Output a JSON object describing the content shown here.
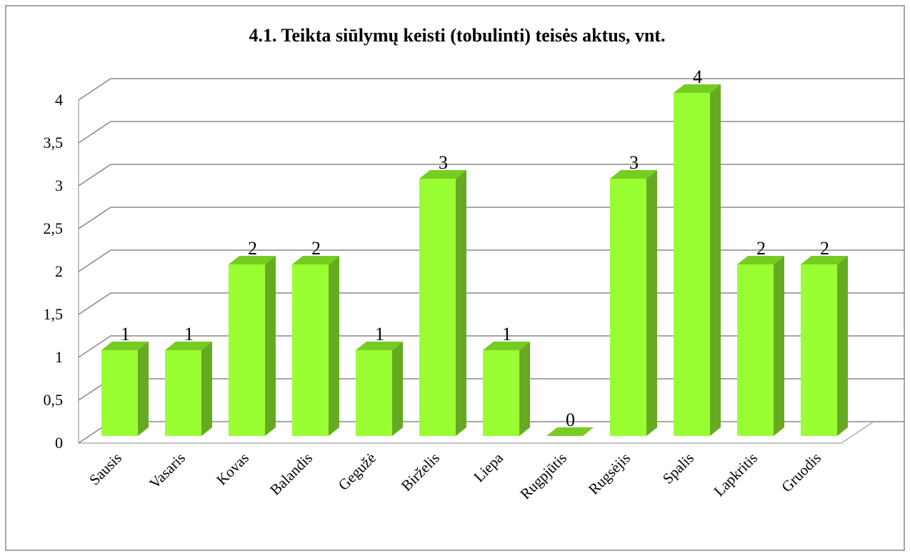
{
  "chart_data": {
    "type": "bar3d",
    "title": "4.1. Teikta  siūlymų keisti (tobulinti)  teisės aktus, vnt.",
    "categories": [
      "Sausis",
      "Vasaris",
      "Kovas",
      "Balandis",
      "Gegužė",
      "Birželis",
      "Liepa",
      "Rugpjūtis",
      "Rugsėjis",
      "Spalis",
      "Lapkritis",
      "Gruodis"
    ],
    "values": [
      1,
      1,
      2,
      2,
      1,
      3,
      1,
      0,
      3,
      4,
      2,
      2
    ],
    "color": "#99ff33",
    "ylim": [
      0,
      4
    ],
    "yticks": [
      0,
      {
        "value": 0.5,
        "label": "0,5"
      },
      1,
      {
        "value": 1.5,
        "label": "1,5"
      },
      2,
      {
        "value": 2.5,
        "label": "2,5"
      },
      3,
      {
        "value": 3.5,
        "label": "3,5"
      },
      4
    ],
    "grid": true
  }
}
